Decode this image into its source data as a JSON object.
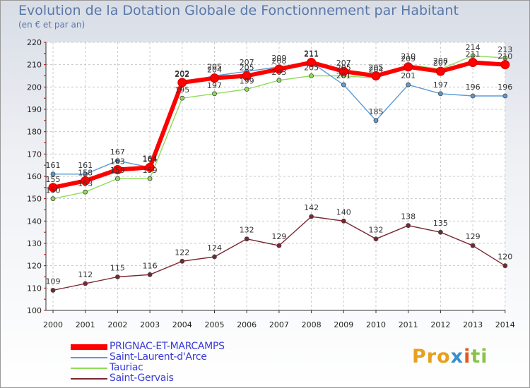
{
  "title": "Evolution de la Dotation Globale de Fonctionnement par Habitant",
  "subtitle": "(en € et par an)",
  "logo": {
    "text": "Proxiti",
    "parts": [
      "Pro",
      "x",
      "i",
      "ti"
    ]
  },
  "chart_data": {
    "type": "line",
    "title": "Evolution de la Dotation Globale de Fonctionnement par Habitant",
    "subtitle": "(en € et par an)",
    "xlabel": "",
    "ylabel": "",
    "ylim": [
      100,
      220
    ],
    "yticks": [
      100,
      110,
      120,
      130,
      140,
      150,
      160,
      170,
      180,
      190,
      200,
      210,
      220
    ],
    "grid": true,
    "legend": "bottom-left",
    "categories": [
      "2000",
      "2001",
      "2002",
      "2003",
      "2004",
      "2005",
      "2006",
      "2007",
      "2008",
      "2009",
      "2010",
      "2011",
      "2012",
      "2013",
      "2014"
    ],
    "series": [
      {
        "name": "PRIGNAC-ET-MARCAMPS",
        "color": "#ff0000",
        "values": [
          155,
          158,
          163,
          164,
          202,
          204,
          205,
          208,
          211,
          207,
          205,
          209,
          207,
          211,
          210
        ]
      },
      {
        "name": "Saint-Laurent-d'Arce",
        "color": "#5b9bd5",
        "values": [
          161,
          161,
          167,
          164,
          202,
          205,
          207,
          209,
          211,
          201,
          185,
          201,
          197,
          196,
          196
        ]
      },
      {
        "name": "Tauriac",
        "color": "#8fdc5a",
        "values": [
          150,
          153,
          159,
          159,
          195,
          197,
          199,
          203,
          205,
          205,
          204,
          210,
          208,
          214,
          213
        ]
      },
      {
        "name": "Saint-Gervais",
        "color": "#7a2630",
        "values": [
          109,
          112,
          115,
          116,
          122,
          124,
          132,
          129,
          142,
          140,
          132,
          138,
          135,
          129,
          120
        ]
      }
    ]
  }
}
